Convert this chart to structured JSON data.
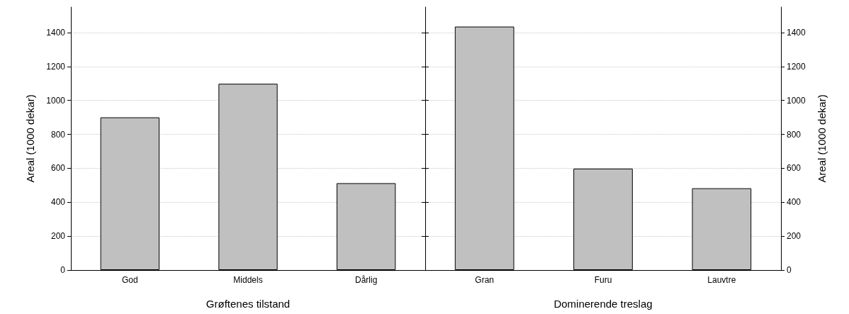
{
  "chart_data": [
    {
      "type": "bar",
      "xlabel": "Grøftenes tilstand",
      "ylabel": "Areal (1000 dekar)",
      "categories": [
        "God",
        "Middels",
        "Dårlig"
      ],
      "series": [
        {
          "color": "#c0c0c0",
          "values": [
            900,
            1098,
            512
          ]
        }
      ],
      "ylim": [
        0,
        1550
      ],
      "yticks": [
        0,
        200,
        400,
        600,
        800,
        1000,
        1200,
        1400
      ],
      "grid": "y"
    },
    {
      "type": "bar",
      "xlabel": "Dominerende treslag",
      "y2label": "Areal (1000 dekar)",
      "categories": [
        "Gran",
        "Furu",
        "Lauvtre"
      ],
      "series": [
        {
          "color": "#c0c0c0",
          "values": [
            1435,
            598,
            482
          ],
          "axis": "y2"
        }
      ],
      "y2lim": [
        0,
        1550
      ],
      "y2ticks": [
        0,
        200,
        400,
        600,
        800,
        1000,
        1200,
        1400
      ],
      "grid": "y"
    }
  ]
}
